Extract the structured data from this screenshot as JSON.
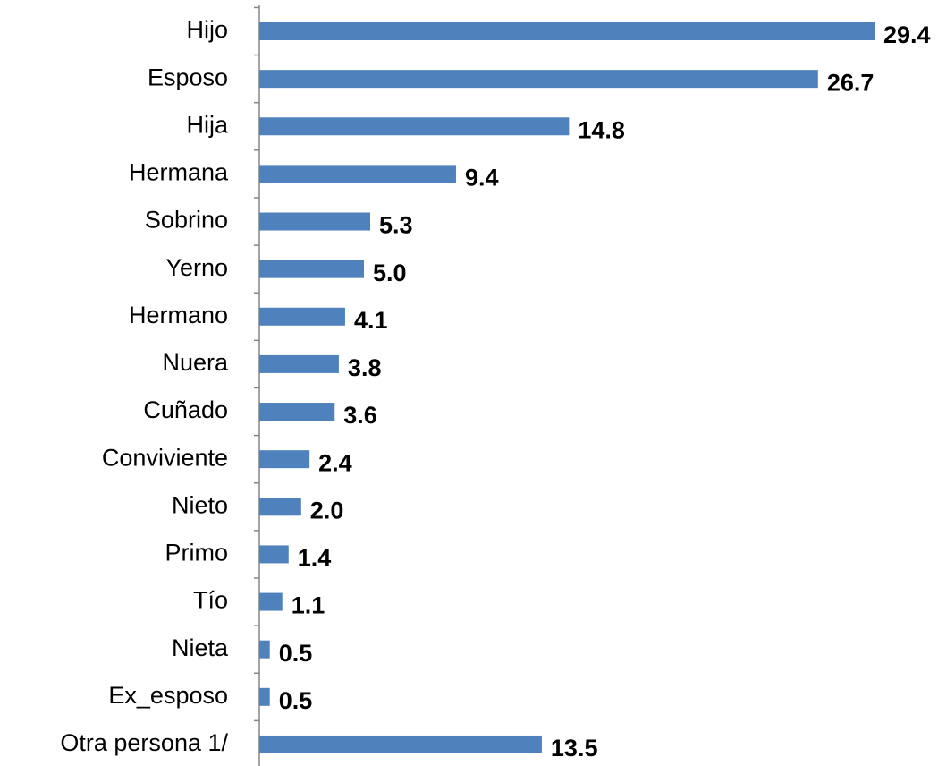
{
  "chart_data": {
    "type": "barh",
    "categories": [
      "Hijo",
      "Esposo",
      "Hija",
      "Hermana",
      "Sobrino",
      "Yerno",
      "Hermano",
      "Nuera",
      "Cuñado",
      "Conviviente",
      "Nieto",
      "Primo",
      "Tío",
      "Nieta",
      "Ex_esposo",
      "Otra persona 1/"
    ],
    "values": [
      29.4,
      26.7,
      14.8,
      9.4,
      5.3,
      5.0,
      4.1,
      3.8,
      3.6,
      2.4,
      2.0,
      1.4,
      1.1,
      0.5,
      0.5,
      13.5
    ],
    "value_labels": [
      "29.4",
      "26.7",
      "14.8",
      "9.4",
      "5.3",
      "5.0",
      "4.1",
      "3.8",
      "3.6",
      "2.4",
      "2.0",
      "1.4",
      "1.1",
      "0.5",
      "0.5",
      "13.5"
    ],
    "color": "#4f81bd"
  }
}
